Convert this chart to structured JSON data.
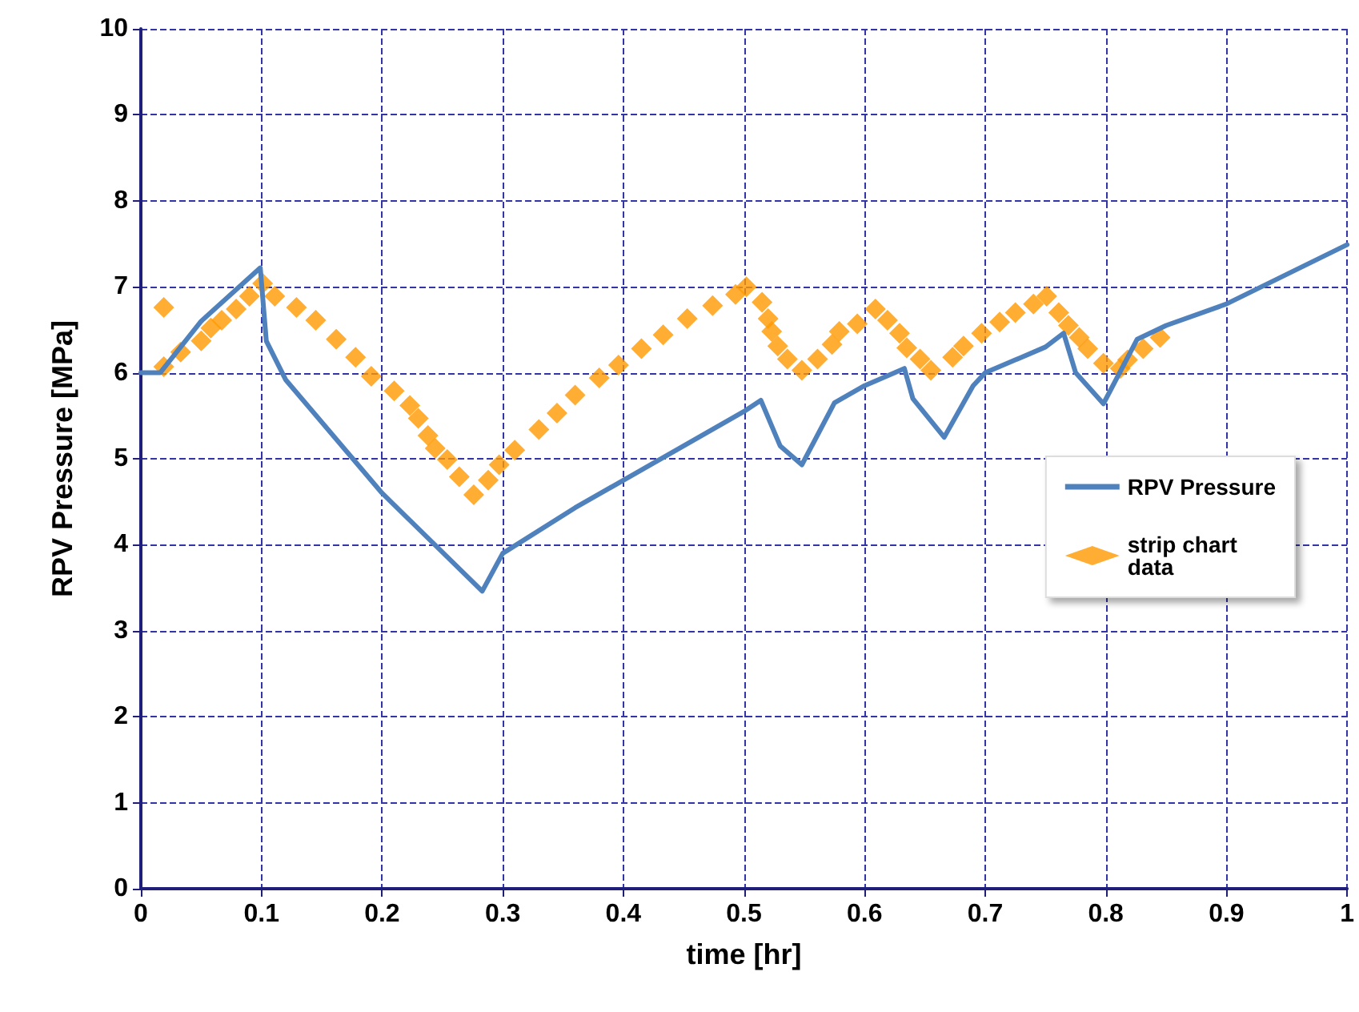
{
  "chart_data": {
    "type": "line",
    "xlabel": "time [hr]",
    "ylabel": "RPV Pressure [MPa]",
    "xlim": [
      0,
      1
    ],
    "xticks": [
      0,
      0.1,
      0.2,
      0.3,
      0.4,
      0.5,
      0.6,
      0.7,
      0.8,
      0.9,
      1
    ],
    "ylim": [
      0,
      10
    ],
    "yticks": [
      0,
      1,
      2,
      3,
      4,
      5,
      6,
      7,
      8,
      9,
      10
    ],
    "grid": true,
    "legend": "right",
    "series": [
      {
        "name": "RPV Pressure",
        "color": "#4f81bd",
        "marker": "none",
        "line_style": "solid",
        "x": [
          0,
          0.016,
          0.05,
          0.099,
          0.104,
          0.12,
          0.2,
          0.283,
          0.3,
          0.36,
          0.4,
          0.5,
          0.514,
          0.53,
          0.548,
          0.575,
          0.6,
          0.633,
          0.64,
          0.666,
          0.69,
          0.7,
          0.75,
          0.765,
          0.775,
          0.798,
          0.826,
          0.85,
          0.9,
          1.0
        ],
        "values": [
          6.0,
          6.0,
          6.6,
          7.22,
          6.37,
          5.92,
          4.6,
          3.46,
          3.9,
          4.43,
          4.75,
          5.55,
          5.68,
          5.15,
          4.93,
          5.65,
          5.85,
          6.05,
          5.7,
          5.25,
          5.85,
          6.0,
          6.3,
          6.46,
          6.0,
          5.64,
          6.39,
          6.55,
          6.8,
          7.49
        ]
      },
      {
        "name": "strip chart\ndata",
        "type": "scatter",
        "color": "#ff9900",
        "marker": "diamond",
        "x": [
          0.019,
          0.019,
          0.033,
          0.05,
          0.058,
          0.067,
          0.079,
          0.09,
          0.101,
          0.111,
          0.129,
          0.145,
          0.162,
          0.178,
          0.191,
          0.21,
          0.223,
          0.23,
          0.238,
          0.244,
          0.254,
          0.264,
          0.276,
          0.288,
          0.297,
          0.31,
          0.33,
          0.345,
          0.36,
          0.38,
          0.396,
          0.415,
          0.433,
          0.453,
          0.474,
          0.493,
          0.502,
          0.515,
          0.52,
          0.523,
          0.528,
          0.536,
          0.548,
          0.561,
          0.573,
          0.579,
          0.594,
          0.609,
          0.619,
          0.629,
          0.635,
          0.646,
          0.655,
          0.673,
          0.682,
          0.697,
          0.712,
          0.725,
          0.74,
          0.751,
          0.761,
          0.769,
          0.778,
          0.785,
          0.798,
          0.812,
          0.818,
          0.831,
          0.845
        ],
        "values": [
          6.76,
          6.07,
          6.24,
          6.37,
          6.52,
          6.61,
          6.74,
          6.89,
          7.04,
          6.89,
          6.76,
          6.61,
          6.39,
          6.18,
          5.96,
          5.79,
          5.62,
          5.47,
          5.27,
          5.12,
          4.99,
          4.79,
          4.58,
          4.75,
          4.93,
          5.1,
          5.34,
          5.53,
          5.74,
          5.94,
          6.09,
          6.28,
          6.44,
          6.63,
          6.78,
          6.91,
          7.0,
          6.82,
          6.63,
          6.48,
          6.31,
          6.16,
          6.03,
          6.16,
          6.33,
          6.48,
          6.57,
          6.74,
          6.61,
          6.46,
          6.29,
          6.16,
          6.03,
          6.18,
          6.31,
          6.46,
          6.59,
          6.7,
          6.8,
          6.89,
          6.7,
          6.55,
          6.41,
          6.28,
          6.11,
          6.05,
          6.15,
          6.28,
          6.41
        ]
      }
    ]
  }
}
